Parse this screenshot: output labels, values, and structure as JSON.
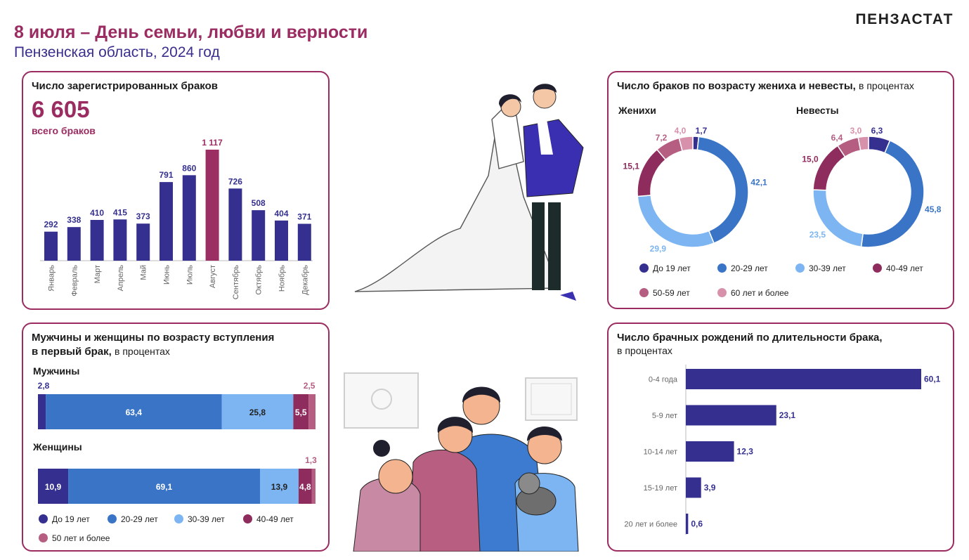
{
  "header": {
    "title": "8 июля – День семьи, любви и верности",
    "subtitle": "Пензенская область, 2024 год",
    "brand": "ПЕНЗАСТАТ"
  },
  "colors": {
    "accent": "#9b2c62",
    "navy": "#35308f",
    "blue": "#3a74c7",
    "light_blue": "#7cb5f2",
    "plum": "#8f2c5e",
    "mauve": "#b65e82",
    "pink": "#d891ab",
    "august": "#9b2f63"
  },
  "panels": {
    "marriages": {
      "title": "Число зарегистрированных браков",
      "total": "6 605",
      "total_label": "всего браков"
    },
    "age_groom_bride": {
      "title": "Число браков по возрасту жениха и невесты,",
      "note": "в процентах",
      "grooms_label": "Женихи",
      "brides_label": "Невесты"
    },
    "first_marriage": {
      "title_line1": "Мужчины и женщины по возрасту вступления",
      "title_line2": "в первый брак,",
      "note": "в процентах",
      "men_label": "Мужчины",
      "women_label": "Женщины"
    },
    "births": {
      "title": "Число брачных рождений по длительности брака,",
      "note": "в процентах"
    }
  },
  "legends": {
    "donut": [
      "До 19 лет",
      "20-29 лет",
      "30-39 лет",
      "40-49 лет",
      "50-59 лет",
      "60 лет и более"
    ],
    "first": [
      "До 19 лет",
      "20-29 лет",
      "30-39 лет",
      "40-49 лет",
      "50 лет и более"
    ]
  },
  "chart_data": [
    {
      "type": "bar",
      "categories": [
        "Январь",
        "Февраль",
        "Март",
        "Апрель",
        "Май",
        "Июнь",
        "Июль",
        "Август",
        "Сентябрь",
        "Октябрь",
        "Ноябрь",
        "Декабрь"
      ],
      "values": [
        292,
        338,
        410,
        415,
        373,
        791,
        860,
        1117,
        726,
        508,
        404,
        371
      ],
      "labels": [
        "292",
        "338",
        "410",
        "415",
        "373",
        "791",
        "860",
        "1 117",
        "726",
        "508",
        "404",
        "371"
      ],
      "highlight_index": 7,
      "title": "Число зарегистрированных браков",
      "ylim": [
        0,
        1117
      ]
    },
    {
      "type": "pie",
      "name": "Женихи",
      "categories": [
        "До 19 лет",
        "20-29 лет",
        "30-39 лет",
        "40-49 лет",
        "50-59 лет",
        "60 лет и более"
      ],
      "values": [
        1.7,
        42.1,
        29.9,
        15.1,
        7.2,
        4.0
      ],
      "labels": [
        "1,7",
        "42,1",
        "29,9",
        "15,1",
        "7,2",
        "4,0"
      ]
    },
    {
      "type": "pie",
      "name": "Невесты",
      "categories": [
        "До 19 лет",
        "20-29 лет",
        "30-39 лет",
        "40-49 лет",
        "50-59 лет",
        "60 лет и более"
      ],
      "values": [
        6.3,
        45.8,
        23.5,
        15.0,
        6.4,
        3.0
      ],
      "labels": [
        "6,3",
        "45,8",
        "23,5",
        "15,0",
        "6,4",
        "3,0"
      ]
    },
    {
      "type": "bar",
      "orientation": "horizontal-stacked",
      "categories": [
        "Мужчины",
        "Женщины"
      ],
      "series": [
        {
          "name": "До 19 лет",
          "values": [
            2.8,
            10.9
          ],
          "labels": [
            "2,8",
            "10,9"
          ]
        },
        {
          "name": "20-29 лет",
          "values": [
            63.4,
            69.1
          ],
          "labels": [
            "63,4",
            "69,1"
          ]
        },
        {
          "name": "30-39 лет",
          "values": [
            25.8,
            13.9
          ],
          "labels": [
            "25,8",
            "13,9"
          ]
        },
        {
          "name": "40-49 лет",
          "values": [
            5.5,
            4.8
          ],
          "labels": [
            "5,5",
            "4,8"
          ]
        },
        {
          "name": "50 лет и более",
          "values": [
            2.5,
            1.3
          ],
          "labels": [
            "2,5",
            "1,3"
          ]
        }
      ]
    },
    {
      "type": "bar",
      "orientation": "horizontal",
      "categories": [
        "0-4 года",
        "5-9 лет",
        "10-14 лет",
        "15-19 лет",
        "20 лет и более"
      ],
      "values": [
        60.1,
        23.1,
        12.3,
        3.9,
        0.6
      ],
      "labels": [
        "60,1",
        "23,1",
        "12,3",
        "3,9",
        "0,6"
      ],
      "title": "Число брачных рождений по длительности брака, в процентах"
    }
  ]
}
